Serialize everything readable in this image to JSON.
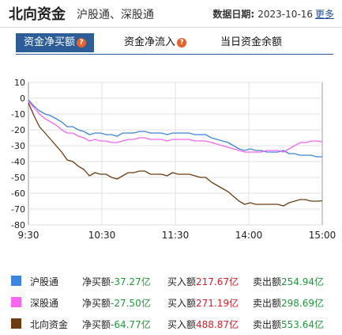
{
  "header": {
    "title": "北向资金",
    "subtitle": "沪股通、深股通",
    "date_label": "数据日期:",
    "date_value": "2023-10-16",
    "more_label": "更多"
  },
  "tabs": [
    {
      "label": "资金净买额",
      "active": true
    },
    {
      "label": "资金净流入",
      "active": false
    },
    {
      "label": "当日资金余额",
      "active": false
    }
  ],
  "chart_data": {
    "type": "line",
    "x_ticks": [
      "9:30",
      "10:30",
      "11:30",
      "14:00",
      "15:00"
    ],
    "y_ticks": [
      "10",
      "0",
      "-10",
      "-20",
      "-30",
      "-40",
      "-50",
      "-60",
      "-70",
      "-80"
    ],
    "ylim": [
      -80,
      10
    ],
    "grid": true,
    "series": [
      {
        "name": "沪股通",
        "color": "#3d85e0",
        "points": [
          [
            0,
            -1
          ],
          [
            4,
            -5
          ],
          [
            8,
            -8
          ],
          [
            12,
            -10
          ],
          [
            16,
            -11
          ],
          [
            20,
            -13
          ],
          [
            24,
            -15
          ],
          [
            28,
            -18
          ],
          [
            32,
            -18
          ],
          [
            36,
            -20
          ],
          [
            40,
            -21
          ],
          [
            44,
            -23
          ],
          [
            48,
            -22
          ],
          [
            52,
            -22
          ],
          [
            56,
            -23
          ],
          [
            60,
            -23
          ],
          [
            64,
            -24
          ],
          [
            68,
            -22
          ],
          [
            72,
            -22
          ],
          [
            76,
            -22
          ],
          [
            80,
            -21
          ],
          [
            84,
            -21
          ],
          [
            88,
            -22
          ],
          [
            92,
            -22
          ],
          [
            96,
            -22
          ],
          [
            100,
            -23
          ],
          [
            104,
            -22
          ],
          [
            108,
            -22
          ],
          [
            112,
            -22
          ],
          [
            116,
            -22
          ],
          [
            120,
            -23
          ],
          [
            124,
            -23
          ],
          [
            128,
            -23
          ],
          [
            132,
            -25
          ],
          [
            136,
            -26
          ],
          [
            140,
            -27
          ],
          [
            144,
            -28
          ],
          [
            148,
            -30
          ],
          [
            152,
            -32
          ],
          [
            156,
            -33
          ],
          [
            160,
            -32
          ],
          [
            164,
            -33
          ],
          [
            168,
            -33
          ],
          [
            172,
            -34
          ],
          [
            176,
            -34
          ],
          [
            180,
            -34
          ],
          [
            184,
            -33
          ],
          [
            188,
            -35
          ],
          [
            192,
            -35
          ],
          [
            196,
            -36
          ],
          [
            200,
            -36
          ],
          [
            204,
            -36
          ],
          [
            208,
            -37
          ],
          [
            212,
            -37
          ]
        ]
      },
      {
        "name": "深股通",
        "color": "#f566f2",
        "points": [
          [
            0,
            -2
          ],
          [
            4,
            -6
          ],
          [
            8,
            -10
          ],
          [
            12,
            -13
          ],
          [
            16,
            -15
          ],
          [
            20,
            -17
          ],
          [
            24,
            -20
          ],
          [
            28,
            -22
          ],
          [
            32,
            -22
          ],
          [
            36,
            -24
          ],
          [
            40,
            -25
          ],
          [
            44,
            -27
          ],
          [
            48,
            -26
          ],
          [
            52,
            -27
          ],
          [
            56,
            -27
          ],
          [
            60,
            -28
          ],
          [
            64,
            -28
          ],
          [
            68,
            -27
          ],
          [
            72,
            -26
          ],
          [
            76,
            -26
          ],
          [
            80,
            -25
          ],
          [
            84,
            -25
          ],
          [
            88,
            -26
          ],
          [
            92,
            -26
          ],
          [
            96,
            -26
          ],
          [
            100,
            -27
          ],
          [
            104,
            -26
          ],
          [
            108,
            -26
          ],
          [
            112,
            -26
          ],
          [
            116,
            -26
          ],
          [
            120,
            -27
          ],
          [
            124,
            -27
          ],
          [
            128,
            -27
          ],
          [
            132,
            -28
          ],
          [
            136,
            -29
          ],
          [
            140,
            -30
          ],
          [
            144,
            -31
          ],
          [
            148,
            -32
          ],
          [
            152,
            -33
          ],
          [
            156,
            -34
          ],
          [
            160,
            -34
          ],
          [
            164,
            -34
          ],
          [
            168,
            -34
          ],
          [
            172,
            -33
          ],
          [
            176,
            -33
          ],
          [
            180,
            -33
          ],
          [
            184,
            -34
          ],
          [
            188,
            -32
          ],
          [
            192,
            -30
          ],
          [
            196,
            -28
          ],
          [
            200,
            -28
          ],
          [
            204,
            -27
          ],
          [
            208,
            -27
          ],
          [
            212,
            -27.5
          ]
        ]
      },
      {
        "name": "北向资金",
        "color": "#6b3c10",
        "points": [
          [
            0,
            -3
          ],
          [
            4,
            -11
          ],
          [
            8,
            -18
          ],
          [
            12,
            -22
          ],
          [
            16,
            -26
          ],
          [
            20,
            -30
          ],
          [
            24,
            -34
          ],
          [
            28,
            -39
          ],
          [
            32,
            -40
          ],
          [
            36,
            -43
          ],
          [
            40,
            -45
          ],
          [
            44,
            -49
          ],
          [
            48,
            -47
          ],
          [
            52,
            -48
          ],
          [
            56,
            -48
          ],
          [
            60,
            -50
          ],
          [
            64,
            -51
          ],
          [
            68,
            -49
          ],
          [
            72,
            -47
          ],
          [
            76,
            -47
          ],
          [
            80,
            -46
          ],
          [
            84,
            -46
          ],
          [
            88,
            -48
          ],
          [
            92,
            -48
          ],
          [
            96,
            -48
          ],
          [
            100,
            -49
          ],
          [
            104,
            -47
          ],
          [
            108,
            -48
          ],
          [
            112,
            -48
          ],
          [
            116,
            -48
          ],
          [
            120,
            -49
          ],
          [
            124,
            -50
          ],
          [
            128,
            -50
          ],
          [
            132,
            -53
          ],
          [
            136,
            -55
          ],
          [
            140,
            -57
          ],
          [
            144,
            -59
          ],
          [
            148,
            -62
          ],
          [
            152,
            -65
          ],
          [
            156,
            -67
          ],
          [
            160,
            -66
          ],
          [
            164,
            -67
          ],
          [
            168,
            -67
          ],
          [
            172,
            -67
          ],
          [
            176,
            -67
          ],
          [
            180,
            -67
          ],
          [
            184,
            -68
          ],
          [
            188,
            -66
          ],
          [
            192,
            -65
          ],
          [
            196,
            -64
          ],
          [
            200,
            -64
          ],
          [
            204,
            -65
          ],
          [
            208,
            -65
          ],
          [
            212,
            -64.8
          ]
        ]
      }
    ]
  },
  "legend": [
    {
      "name": "沪股通",
      "color": "#3d85e0",
      "net_label": "净买额",
      "net_value": "-37.27亿",
      "buy_label": "买入额",
      "buy_value": "217.67亿",
      "sell_label": "卖出额",
      "sell_value": "254.94亿"
    },
    {
      "name": "深股通",
      "color": "#f566f2",
      "net_label": "净买额",
      "net_value": "-27.50亿",
      "buy_label": "买入额",
      "buy_value": "271.19亿",
      "sell_label": "卖出额",
      "sell_value": "298.69亿"
    },
    {
      "name": "北向资金",
      "color": "#6b3c10",
      "net_label": "净买额",
      "net_value": "-64.77亿",
      "buy_label": "买入额",
      "buy_value": "488.87亿",
      "sell_label": "卖出额",
      "sell_value": "553.64亿"
    }
  ]
}
